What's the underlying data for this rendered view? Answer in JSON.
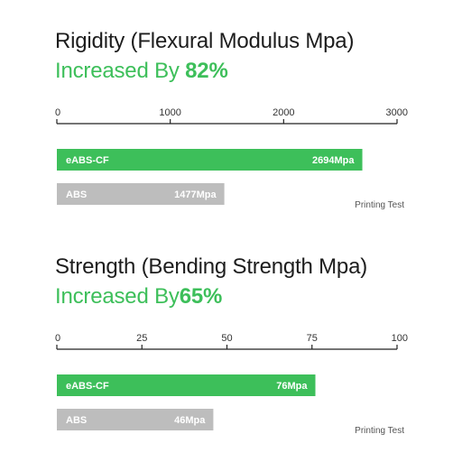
{
  "colors": {
    "green": "#3dbf5a",
    "gray": "#bdbdbd",
    "axis": "#222222",
    "title": "#1d1d1d"
  },
  "chart_data": [
    {
      "type": "bar",
      "orientation": "horizontal",
      "title": "Rigidity (Flexural Modulus Mpa)",
      "subtitle_text": "Increased By ",
      "subtitle_pct": "82%",
      "xlim": [
        0,
        3000
      ],
      "ticks": [
        0,
        1000,
        2000,
        3000
      ],
      "tick_labels": [
        "0",
        "1000",
        "2000",
        "3000"
      ],
      "categories": [
        "eABS-CF",
        "ABS"
      ],
      "values": [
        2694,
        1477
      ],
      "value_labels": [
        "2694Mpa",
        "1477Mpa"
      ],
      "bar_colors": [
        "#3dbf5a",
        "#bdbdbd"
      ],
      "note": "Printing Test",
      "grid": false
    },
    {
      "type": "bar",
      "orientation": "horizontal",
      "title": "Strength (Bending Strength Mpa)",
      "subtitle_text": "Increased By",
      "subtitle_pct": "65%",
      "xlim": [
        0,
        100
      ],
      "ticks": [
        0,
        25,
        50,
        75,
        100
      ],
      "tick_labels": [
        "0",
        "25",
        "50",
        "75",
        "100"
      ],
      "categories": [
        "eABS-CF",
        "ABS"
      ],
      "values": [
        76,
        46
      ],
      "value_labels": [
        "76Mpa",
        "46Mpa"
      ],
      "bar_colors": [
        "#3dbf5a",
        "#bdbdbd"
      ],
      "note": "Printing Test",
      "grid": false
    }
  ]
}
